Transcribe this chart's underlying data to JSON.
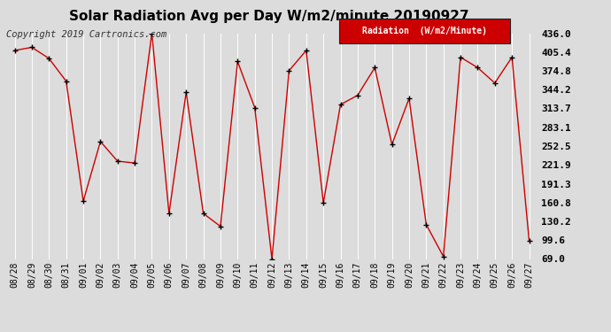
{
  "title": "Solar Radiation Avg per Day W/m2/minute 20190927",
  "copyright": "Copyright 2019 Cartronics.com",
  "legend_label": "Radiation  (W/m2/Minute)",
  "dates": [
    "08/28",
    "08/29",
    "08/30",
    "08/31",
    "09/01",
    "09/02",
    "09/03",
    "09/04",
    "09/05",
    "09/06",
    "09/07",
    "09/08",
    "09/09",
    "09/10",
    "09/11",
    "09/12",
    "09/13",
    "09/14",
    "09/15",
    "09/16",
    "09/17",
    "09/18",
    "09/19",
    "09/20",
    "09/21",
    "09/22",
    "09/23",
    "09/24",
    "09/25",
    "09/26",
    "09/27"
  ],
  "values": [
    408,
    413,
    395,
    358,
    163,
    260,
    228,
    225,
    436,
    143,
    340,
    143,
    122,
    390,
    315,
    69,
    375,
    408,
    160,
    320,
    335,
    380,
    255,
    330,
    125,
    73,
    397,
    380,
    355,
    397,
    99
  ],
  "ylim": [
    69.0,
    436.0
  ],
  "yticks": [
    436.0,
    405.4,
    374.8,
    344.2,
    313.7,
    283.1,
    252.5,
    221.9,
    191.3,
    160.8,
    130.2,
    99.6,
    69.0
  ],
  "line_color": "#cc0000",
  "marker_color": "#000000",
  "bg_color": "#dcdcdc",
  "grid_color": "#ffffff",
  "title_fontsize": 11,
  "copyright_fontsize": 7.5,
  "tick_fontsize": 7,
  "ytick_fontsize": 8,
  "legend_bg": "#cc0000",
  "legend_text_color": "#ffffff",
  "legend_fontsize": 7
}
